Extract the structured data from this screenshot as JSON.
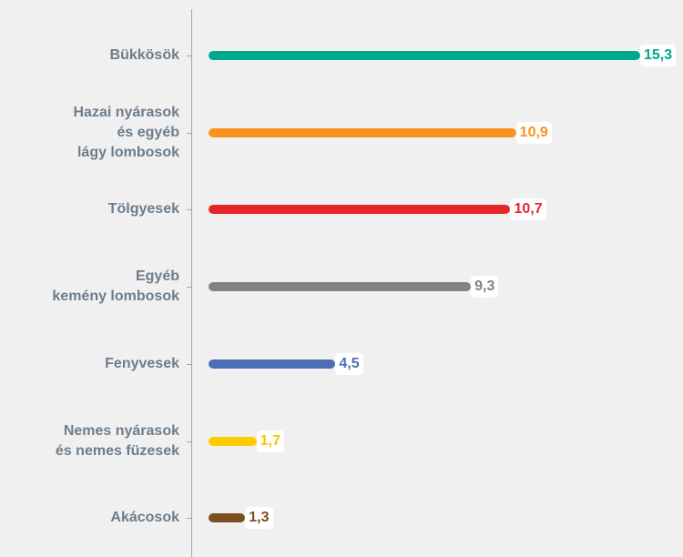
{
  "chart_data": {
    "type": "bar",
    "orientation": "horizontal",
    "categories": [
      "Bükkösök",
      "Hazai nyárasok\nés egyéb\nlágy lombosok",
      "Tölgyesek",
      "Egyéb\nkemény lombosok",
      "Fenyvesek",
      "Nemes nyárasok\nés nemes füzesek",
      "Akácosok"
    ],
    "values": [
      15.3,
      10.9,
      10.7,
      9.3,
      4.5,
      1.7,
      1.3
    ],
    "value_labels": [
      "15,3",
      "10,9",
      "10,7",
      "9,3",
      "4,5",
      "1,7",
      "1,3"
    ],
    "colors": [
      "#00a88f",
      "#f7941d",
      "#e8262a",
      "#808285",
      "#4a6fb5",
      "#ffcc00",
      "#7b4f1e"
    ]
  }
}
